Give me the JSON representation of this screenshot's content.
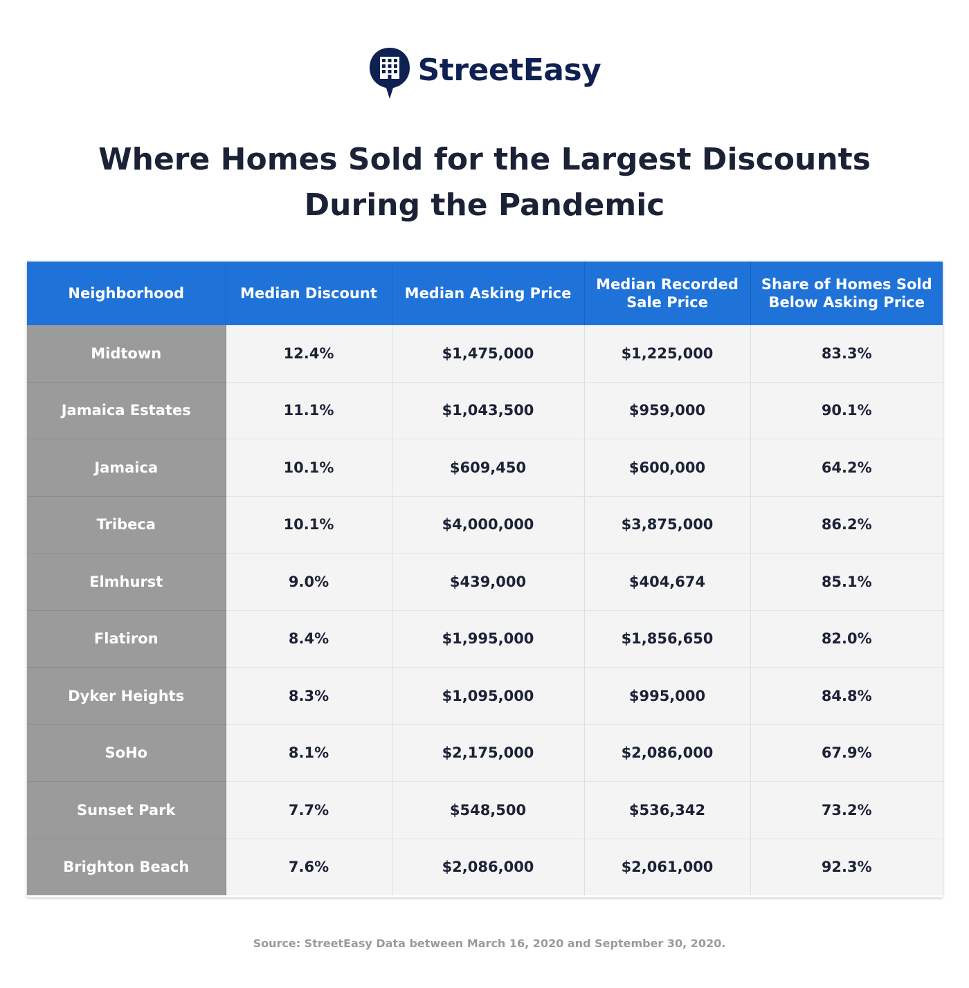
{
  "brand": {
    "name": "StreetEasy",
    "logo_icon": "building-speech-bubble-icon",
    "color": "#0f2052"
  },
  "title_lines": [
    "Where Homes Sold for the Largest Discounts",
    "During the Pandemic"
  ],
  "colors": {
    "header_bg": "#1f73d8",
    "neighborhood_bg": "#9b9b9b",
    "cell_bg": "#f4f4f4"
  },
  "chart_data": {
    "type": "table",
    "title": "Where Homes Sold for the Largest Discounts During the Pandemic",
    "columns": [
      "Neighborhood",
      "Median Discount",
      "Median Asking Price",
      "Median Recorded Sale Price",
      "Share of Homes Sold Below Asking Price"
    ],
    "rows": [
      [
        "Midtown",
        "12.4%",
        "$1,475,000",
        "$1,225,000",
        "83.3%"
      ],
      [
        "Jamaica Estates",
        "11.1%",
        "$1,043,500",
        "$959,000",
        "90.1%"
      ],
      [
        "Jamaica",
        "10.1%",
        "$609,450",
        "$600,000",
        "64.2%"
      ],
      [
        "Tribeca",
        "10.1%",
        "$4,000,000",
        "$3,875,000",
        "86.2%"
      ],
      [
        "Elmhurst",
        "9.0%",
        "$439,000",
        "$404,674",
        "85.1%"
      ],
      [
        "Flatiron",
        "8.4%",
        "$1,995,000",
        "$1,856,650",
        "82.0%"
      ],
      [
        "Dyker Heights",
        "8.3%",
        "$1,095,000",
        "$995,000",
        "84.8%"
      ],
      [
        "SoHo",
        "8.1%",
        "$2,175,000",
        "$2,086,000",
        "67.9%"
      ],
      [
        "Sunset Park",
        "7.7%",
        "$548,500",
        "$536,342",
        "73.2%"
      ],
      [
        "Brighton Beach",
        "7.6%",
        "$2,086,000",
        "$2,061,000",
        "92.3%"
      ]
    ],
    "source": "Source: StreetEasy Data between March 16, 2020 and September 30, 2020."
  }
}
